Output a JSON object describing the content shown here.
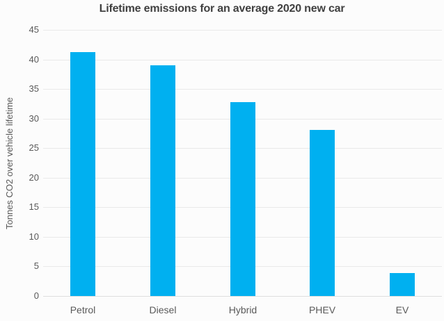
{
  "chart_data": {
    "type": "bar",
    "title": "Lifetime emissions for an average 2020 new car",
    "xlabel": "",
    "ylabel": "Tonnes CO2 over vehicle lifetime",
    "categories": [
      "Petrol",
      "Diesel",
      "Hybrid",
      "PHEV",
      "EV"
    ],
    "values": [
      41.2,
      39.0,
      32.8,
      28.1,
      3.9
    ],
    "ylim": [
      0,
      45
    ],
    "yticks": [
      0,
      5,
      10,
      15,
      20,
      25,
      30,
      35,
      40,
      45
    ],
    "grid": "horizontal",
    "legend": "none",
    "colors": {
      "bar": "#00b0f0",
      "title_text": "#404040",
      "axis_text": "#595959",
      "gridline": "#e9e9e9",
      "baseline": "#dedede",
      "background": "#fcfcfc"
    }
  }
}
